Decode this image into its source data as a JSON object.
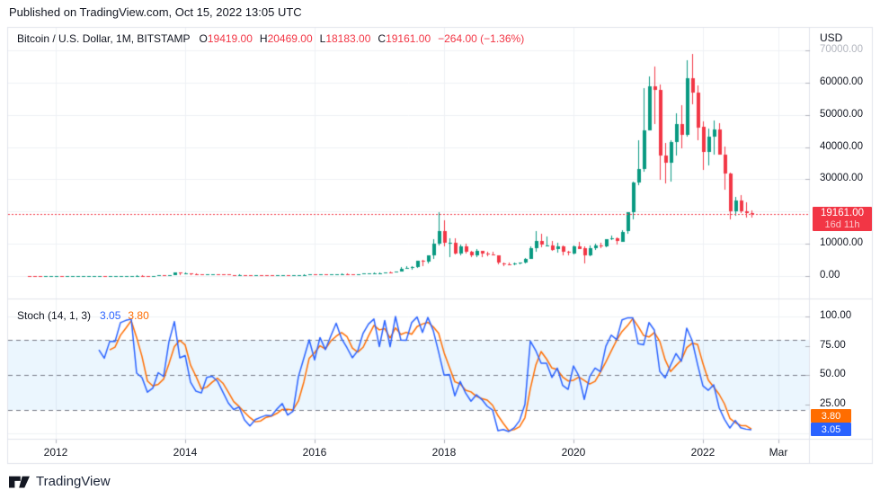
{
  "published_bar": {
    "text": "Published on TradingView.com, Oct 15, 2022 13:05 UTC"
  },
  "header": {
    "symbol": "Bitcoin / U.S. Dollar, 1M, BITSTAMP",
    "o_label": "O",
    "o_value": "19419.00",
    "h_label": "H",
    "h_value": "20469.00",
    "l_label": "L",
    "l_value": "18183.00",
    "c_label": "C",
    "c_value": "19161.00",
    "change": "−264.00 (−1.36%)"
  },
  "price_axis": {
    "unit": "USD",
    "ticks": [
      {
        "label": "70000.00",
        "price": 70000,
        "muted": true
      },
      {
        "label": "60000.00",
        "price": 60000
      },
      {
        "label": "50000.00",
        "price": 50000
      },
      {
        "label": "40000.00",
        "price": 40000
      },
      {
        "label": "30000.00",
        "price": 30000
      },
      {
        "label": "10000.00",
        "price": 10000
      },
      {
        "label": "0.00",
        "price": 0
      }
    ]
  },
  "last_price_flag": {
    "price": "19161.00",
    "countdown": "16d 11h"
  },
  "stoch_panel": {
    "title": "Stoch (14, 1, 3)",
    "k_value": "3.05",
    "d_value": "3.80",
    "axis_ticks": [
      {
        "label": "100.00",
        "value": 100
      },
      {
        "label": "75.00",
        "value": 75
      },
      {
        "label": "50.00",
        "value": 50
      },
      {
        "label": "25.00",
        "value": 25
      }
    ],
    "d_flag": "3.80",
    "k_flag": "3.05"
  },
  "time_axis": {
    "labels": [
      {
        "text": "2012",
        "date": "2012-01"
      },
      {
        "text": "2014",
        "date": "2014-01"
      },
      {
        "text": "2016",
        "date": "2016-01"
      },
      {
        "text": "2018",
        "date": "2018-01"
      },
      {
        "text": "2020",
        "date": "2020-01"
      },
      {
        "text": "2022",
        "date": "2022-01"
      },
      {
        "text": "Mar",
        "date": "2023-03"
      }
    ]
  },
  "footer": {
    "brand": "TradingView"
  },
  "colors": {
    "up": "#089981",
    "down": "#f23645",
    "k_line": "#2962ff",
    "d_line": "#ff6d00",
    "price_line": "#f23645",
    "band_fill": "rgba(33,150,243,0.09)",
    "band_line": "#787b86",
    "grid": "#eef0f5",
    "frame": "#e0e3eb",
    "tick": "#b0b3bc",
    "text": "#131722",
    "muted_text": "#b2b5be",
    "flag_bg": "#f23645",
    "k_flag_bg": "#2962ff",
    "d_flag_bg": "#ff6d00"
  },
  "chart_data": {
    "type": "candlestick",
    "title": "Bitcoin / U.S. Dollar",
    "exchange": "BITSTAMP",
    "timeframe": "1M",
    "price_axis_range": [
      0,
      70000
    ],
    "price_grid_step": 10000,
    "last_close": 19161,
    "indicator": {
      "type": "stochastic",
      "params": [
        14,
        1,
        3
      ],
      "upper_band": 80,
      "middle_band": 50,
      "lower_band": 20,
      "range": [
        0,
        100
      ],
      "last_k": 3.05,
      "last_d": 3.8
    },
    "candles": [
      [
        "2011-08",
        11,
        12,
        6,
        8
      ],
      [
        "2011-09",
        8,
        9,
        4,
        5
      ],
      [
        "2011-10",
        5,
        6,
        2,
        3
      ],
      [
        "2011-11",
        3,
        3,
        2,
        3
      ],
      [
        "2011-12",
        3,
        5,
        2,
        4
      ],
      [
        "2012-01",
        4,
        7,
        4,
        6
      ],
      [
        "2012-02",
        6,
        6,
        4,
        5
      ],
      [
        "2012-03",
        5,
        5,
        4,
        5
      ],
      [
        "2012-04",
        5,
        6,
        4,
        5
      ],
      [
        "2012-05",
        5,
        6,
        5,
        5
      ],
      [
        "2012-06",
        5,
        7,
        5,
        7
      ],
      [
        "2012-07",
        7,
        9,
        6,
        9
      ],
      [
        "2012-08",
        9,
        16,
        7,
        10
      ],
      [
        "2012-09",
        10,
        13,
        10,
        12
      ],
      [
        "2012-10",
        12,
        13,
        11,
        11
      ],
      [
        "2012-11",
        11,
        13,
        10,
        13
      ],
      [
        "2012-12",
        13,
        14,
        13,
        13
      ],
      [
        "2013-01",
        13,
        21,
        13,
        20
      ],
      [
        "2013-02",
        20,
        34,
        19,
        33
      ],
      [
        "2013-03",
        33,
        95,
        33,
        93
      ],
      [
        "2013-04",
        93,
        266,
        50,
        139
      ],
      [
        "2013-05",
        139,
        146,
        79,
        129
      ],
      [
        "2013-06",
        129,
        130,
        89,
        97
      ],
      [
        "2013-07",
        97,
        111,
        66,
        106
      ],
      [
        "2013-08",
        106,
        147,
        92,
        141
      ],
      [
        "2013-09",
        141,
        147,
        110,
        133
      ],
      [
        "2013-10",
        133,
        230,
        123,
        211
      ],
      [
        "2013-11",
        211,
        1163,
        200,
        1113
      ],
      [
        "2013-12",
        1113,
        1240,
        380,
        805
      ],
      [
        "2014-01",
        805,
        1000,
        730,
        830
      ],
      [
        "2014-02",
        830,
        840,
        400,
        550
      ],
      [
        "2014-03",
        550,
        700,
        340,
        460
      ],
      [
        "2014-04",
        460,
        550,
        340,
        450
      ],
      [
        "2014-05",
        450,
        630,
        420,
        620
      ],
      [
        "2014-06",
        620,
        680,
        540,
        640
      ],
      [
        "2014-07",
        640,
        660,
        560,
        590
      ],
      [
        "2014-08",
        590,
        600,
        440,
        480
      ],
      [
        "2014-09",
        480,
        490,
        280,
        390
      ],
      [
        "2014-10",
        390,
        410,
        275,
        340
      ],
      [
        "2014-11",
        340,
        460,
        320,
        375
      ],
      [
        "2014-12",
        375,
        385,
        285,
        320
      ],
      [
        "2015-01",
        320,
        320,
        150,
        220
      ],
      [
        "2015-02",
        220,
        260,
        210,
        250
      ],
      [
        "2015-03",
        250,
        300,
        230,
        245
      ],
      [
        "2015-04",
        245,
        260,
        210,
        235
      ],
      [
        "2015-05",
        235,
        250,
        225,
        230
      ],
      [
        "2015-06",
        230,
        270,
        220,
        260
      ],
      [
        "2015-07",
        260,
        320,
        250,
        285
      ],
      [
        "2015-08",
        285,
        290,
        200,
        230
      ],
      [
        "2015-09",
        230,
        250,
        220,
        235
      ],
      [
        "2015-10",
        235,
        335,
        235,
        315
      ],
      [
        "2015-11",
        315,
        500,
        295,
        375
      ],
      [
        "2015-12",
        375,
        470,
        345,
        430
      ],
      [
        "2016-01",
        430,
        460,
        350,
        370
      ],
      [
        "2016-02",
        370,
        450,
        365,
        437
      ],
      [
        "2016-03",
        437,
        440,
        380,
        415
      ],
      [
        "2016-04",
        415,
        470,
        410,
        450
      ],
      [
        "2016-05",
        450,
        550,
        440,
        530
      ],
      [
        "2016-06",
        530,
        780,
        510,
        670
      ],
      [
        "2016-07",
        670,
        700,
        600,
        625
      ],
      [
        "2016-08",
        625,
        630,
        465,
        575
      ],
      [
        "2016-09",
        575,
        630,
        570,
        610
      ],
      [
        "2016-10",
        610,
        740,
        600,
        700
      ],
      [
        "2016-11",
        700,
        755,
        670,
        745
      ],
      [
        "2016-12",
        745,
        980,
        740,
        965
      ],
      [
        "2017-01",
        965,
        1180,
        750,
        965
      ],
      [
        "2017-02",
        965,
        1220,
        920,
        1190
      ],
      [
        "2017-03",
        1190,
        1330,
        890,
        1080
      ],
      [
        "2017-04",
        1080,
        1350,
        1070,
        1350
      ],
      [
        "2017-05",
        1350,
        2780,
        1340,
        2300
      ],
      [
        "2017-06",
        2300,
        3000,
        2100,
        2480
      ],
      [
        "2017-07",
        2480,
        2930,
        1830,
        2870
      ],
      [
        "2017-08",
        2870,
        4750,
        2650,
        4730
      ],
      [
        "2017-09",
        4730,
        4980,
        2970,
        4360
      ],
      [
        "2017-10",
        4360,
        6500,
        4100,
        6450
      ],
      [
        "2017-11",
        6450,
        11400,
        5400,
        10100
      ],
      [
        "2017-12",
        10100,
        19700,
        9400,
        13900
      ],
      [
        "2018-01",
        13900,
        17200,
        9000,
        10200
      ],
      [
        "2018-02",
        10200,
        11800,
        6000,
        10300
      ],
      [
        "2018-03",
        10300,
        11700,
        6600,
        6930
      ],
      [
        "2018-04",
        6930,
        9760,
        6430,
        9240
      ],
      [
        "2018-05",
        9240,
        9990,
        7040,
        7490
      ],
      [
        "2018-06",
        7490,
        7750,
        5780,
        6390
      ],
      [
        "2018-07",
        6390,
        8500,
        6070,
        7730
      ],
      [
        "2018-08",
        7730,
        7770,
        5880,
        7010
      ],
      [
        "2018-09",
        7010,
        7420,
        6100,
        6620
      ],
      [
        "2018-10",
        6620,
        7450,
        6200,
        6300
      ],
      [
        "2018-11",
        6300,
        6550,
        3650,
        4020
      ],
      [
        "2018-12",
        4020,
        4300,
        3150,
        3690
      ],
      [
        "2019-01",
        3690,
        4110,
        3350,
        3410
      ],
      [
        "2019-02",
        3410,
        4200,
        3350,
        3810
      ],
      [
        "2019-03",
        3810,
        4140,
        3660,
        4090
      ],
      [
        "2019-04",
        4090,
        5640,
        4050,
        5270
      ],
      [
        "2019-05",
        5270,
        9070,
        5270,
        8550
      ],
      [
        "2019-06",
        8550,
        13880,
        7430,
        10760
      ],
      [
        "2019-07",
        10760,
        13130,
        9070,
        9590
      ],
      [
        "2019-08",
        9590,
        12320,
        9320,
        9590
      ],
      [
        "2019-09",
        9590,
        10900,
        7700,
        8280
      ],
      [
        "2019-10",
        8280,
        10350,
        7300,
        9140
      ],
      [
        "2019-11",
        9140,
        9520,
        6520,
        7550
      ],
      [
        "2019-12",
        7550,
        7750,
        6430,
        7190
      ],
      [
        "2020-01",
        7190,
        9570,
        6850,
        9340
      ],
      [
        "2020-02",
        9340,
        10500,
        8400,
        8520
      ],
      [
        "2020-03",
        8520,
        9180,
        3850,
        6410
      ],
      [
        "2020-04",
        6410,
        9460,
        6140,
        8620
      ],
      [
        "2020-05",
        8620,
        10070,
        8100,
        9450
      ],
      [
        "2020-06",
        9450,
        10380,
        8830,
        9140
      ],
      [
        "2020-07",
        9140,
        11440,
        8900,
        11330
      ],
      [
        "2020-08",
        11330,
        12480,
        11000,
        11650
      ],
      [
        "2020-09",
        11650,
        12050,
        9820,
        10780
      ],
      [
        "2020-10",
        10780,
        14100,
        10380,
        13800
      ],
      [
        "2020-11",
        13800,
        19900,
        13200,
        19700
      ],
      [
        "2020-12",
        19700,
        29300,
        17600,
        28990
      ],
      [
        "2021-01",
        28990,
        42000,
        28130,
        33110
      ],
      [
        "2021-02",
        33110,
        58350,
        32320,
        45160
      ],
      [
        "2021-03",
        45160,
        61780,
        44950,
        58770
      ],
      [
        "2021-04",
        58770,
        64870,
        46930,
        57720
      ],
      [
        "2021-05",
        57720,
        59500,
        30000,
        37320
      ],
      [
        "2021-06",
        37320,
        41330,
        28800,
        35040
      ],
      [
        "2021-07",
        35040,
        42240,
        29300,
        41460
      ],
      [
        "2021-08",
        41460,
        50500,
        37330,
        47100
      ],
      [
        "2021-09",
        47100,
        52920,
        39600,
        43790
      ],
      [
        "2021-10",
        43790,
        66990,
        43280,
        61300
      ],
      [
        "2021-11",
        61300,
        69000,
        53260,
        56950
      ],
      [
        "2021-12",
        56950,
        59050,
        42000,
        46210
      ],
      [
        "2022-01",
        46210,
        47990,
        32930,
        38480
      ],
      [
        "2022-02",
        38480,
        45820,
        34300,
        43190
      ],
      [
        "2022-03",
        43190,
        48190,
        37550,
        45510
      ],
      [
        "2022-04",
        45510,
        47450,
        37580,
        37630
      ],
      [
        "2022-05",
        37630,
        40020,
        26700,
        31790
      ],
      [
        "2022-06",
        31790,
        31960,
        17590,
        19940
      ],
      [
        "2022-07",
        19940,
        24670,
        18770,
        23290
      ],
      [
        "2022-08",
        23290,
        25210,
        19540,
        20040
      ],
      [
        "2022-09",
        20040,
        22790,
        18130,
        19420
      ],
      [
        "2022-10",
        19419,
        20469,
        18183,
        19161
      ]
    ]
  }
}
